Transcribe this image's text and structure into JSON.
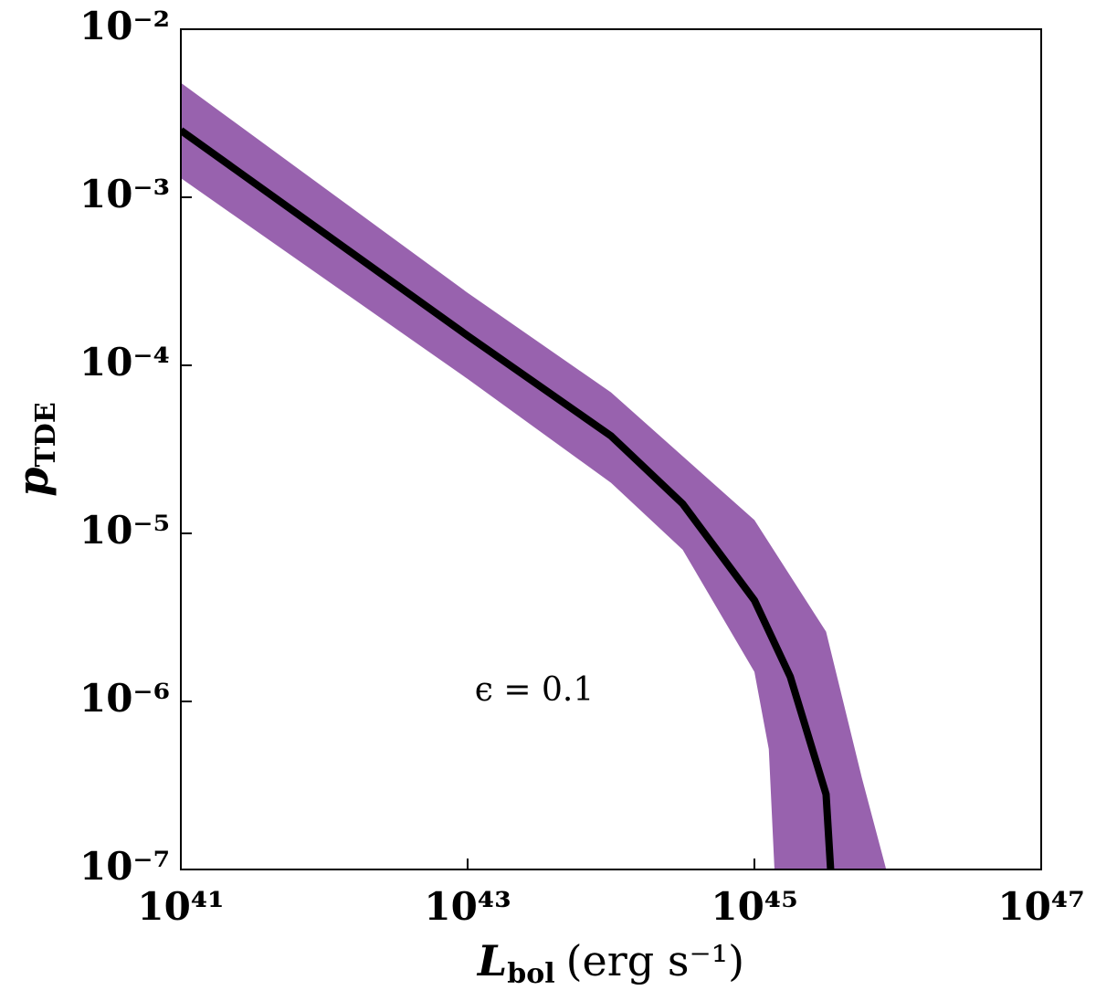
{
  "chart_data": {
    "type": "line",
    "xlabel": {
      "symbol": "L",
      "subscript": "bol",
      "unit": "(erg s⁻¹)"
    },
    "ylabel": {
      "symbol": "p",
      "subscript": "TDE"
    },
    "annotation": "ϵ = 0.1",
    "xscale": "log",
    "yscale": "log",
    "xlim": [
      1e+41,
      1e+47
    ],
    "ylim": [
      1e-07,
      0.01
    ],
    "xticks": [
      {
        "value": 1e+41,
        "label": "10⁴¹"
      },
      {
        "value": 1e+43,
        "label": "10⁴³"
      },
      {
        "value": 1e+45,
        "label": "10⁴⁵"
      },
      {
        "value": 1e+47,
        "label": "10⁴⁷"
      }
    ],
    "yticks": [
      {
        "value": 1e-07,
        "label": "10⁻⁷"
      },
      {
        "value": 1e-06,
        "label": "10⁻⁶"
      },
      {
        "value": 1e-05,
        "label": "10⁻⁵"
      },
      {
        "value": 0.0001,
        "label": "10⁻⁴"
      },
      {
        "value": 0.001,
        "label": "10⁻³"
      },
      {
        "value": 0.01,
        "label": "10⁻²"
      }
    ],
    "line": {
      "color": "#000000",
      "x": [
        1e+41,
        1e+43,
        1e+44,
        3.16e+44,
        1e+45,
        1.78e+45,
        3.16e+45,
        3.4e+45
      ],
      "y": [
        0.0025,
        0.00015,
        3.8e-05,
        1.5e-05,
        4e-06,
        1.4e-06,
        2.8e-07,
        1e-07
      ]
    },
    "band": {
      "color": "#9862ae",
      "upper": {
        "x": [
          1e+41,
          1e+43,
          1e+44,
          1e+45,
          3.16e+45,
          5.62e+45,
          8.3e+45
        ],
        "y": [
          0.0048,
          0.00027,
          6.9e-05,
          1.2e-05,
          2.6e-06,
          3.5e-07,
          1e-07
        ]
      },
      "lower": {
        "x": [
          1e+41,
          1e+43,
          1e+44,
          3.16e+44,
          1e+45,
          1.26e+45,
          1.38e+45
        ],
        "y": [
          0.0013,
          8.3e-05,
          2e-05,
          8e-06,
          1.5e-06,
          5.2e-07,
          1e-07
        ]
      }
    }
  }
}
